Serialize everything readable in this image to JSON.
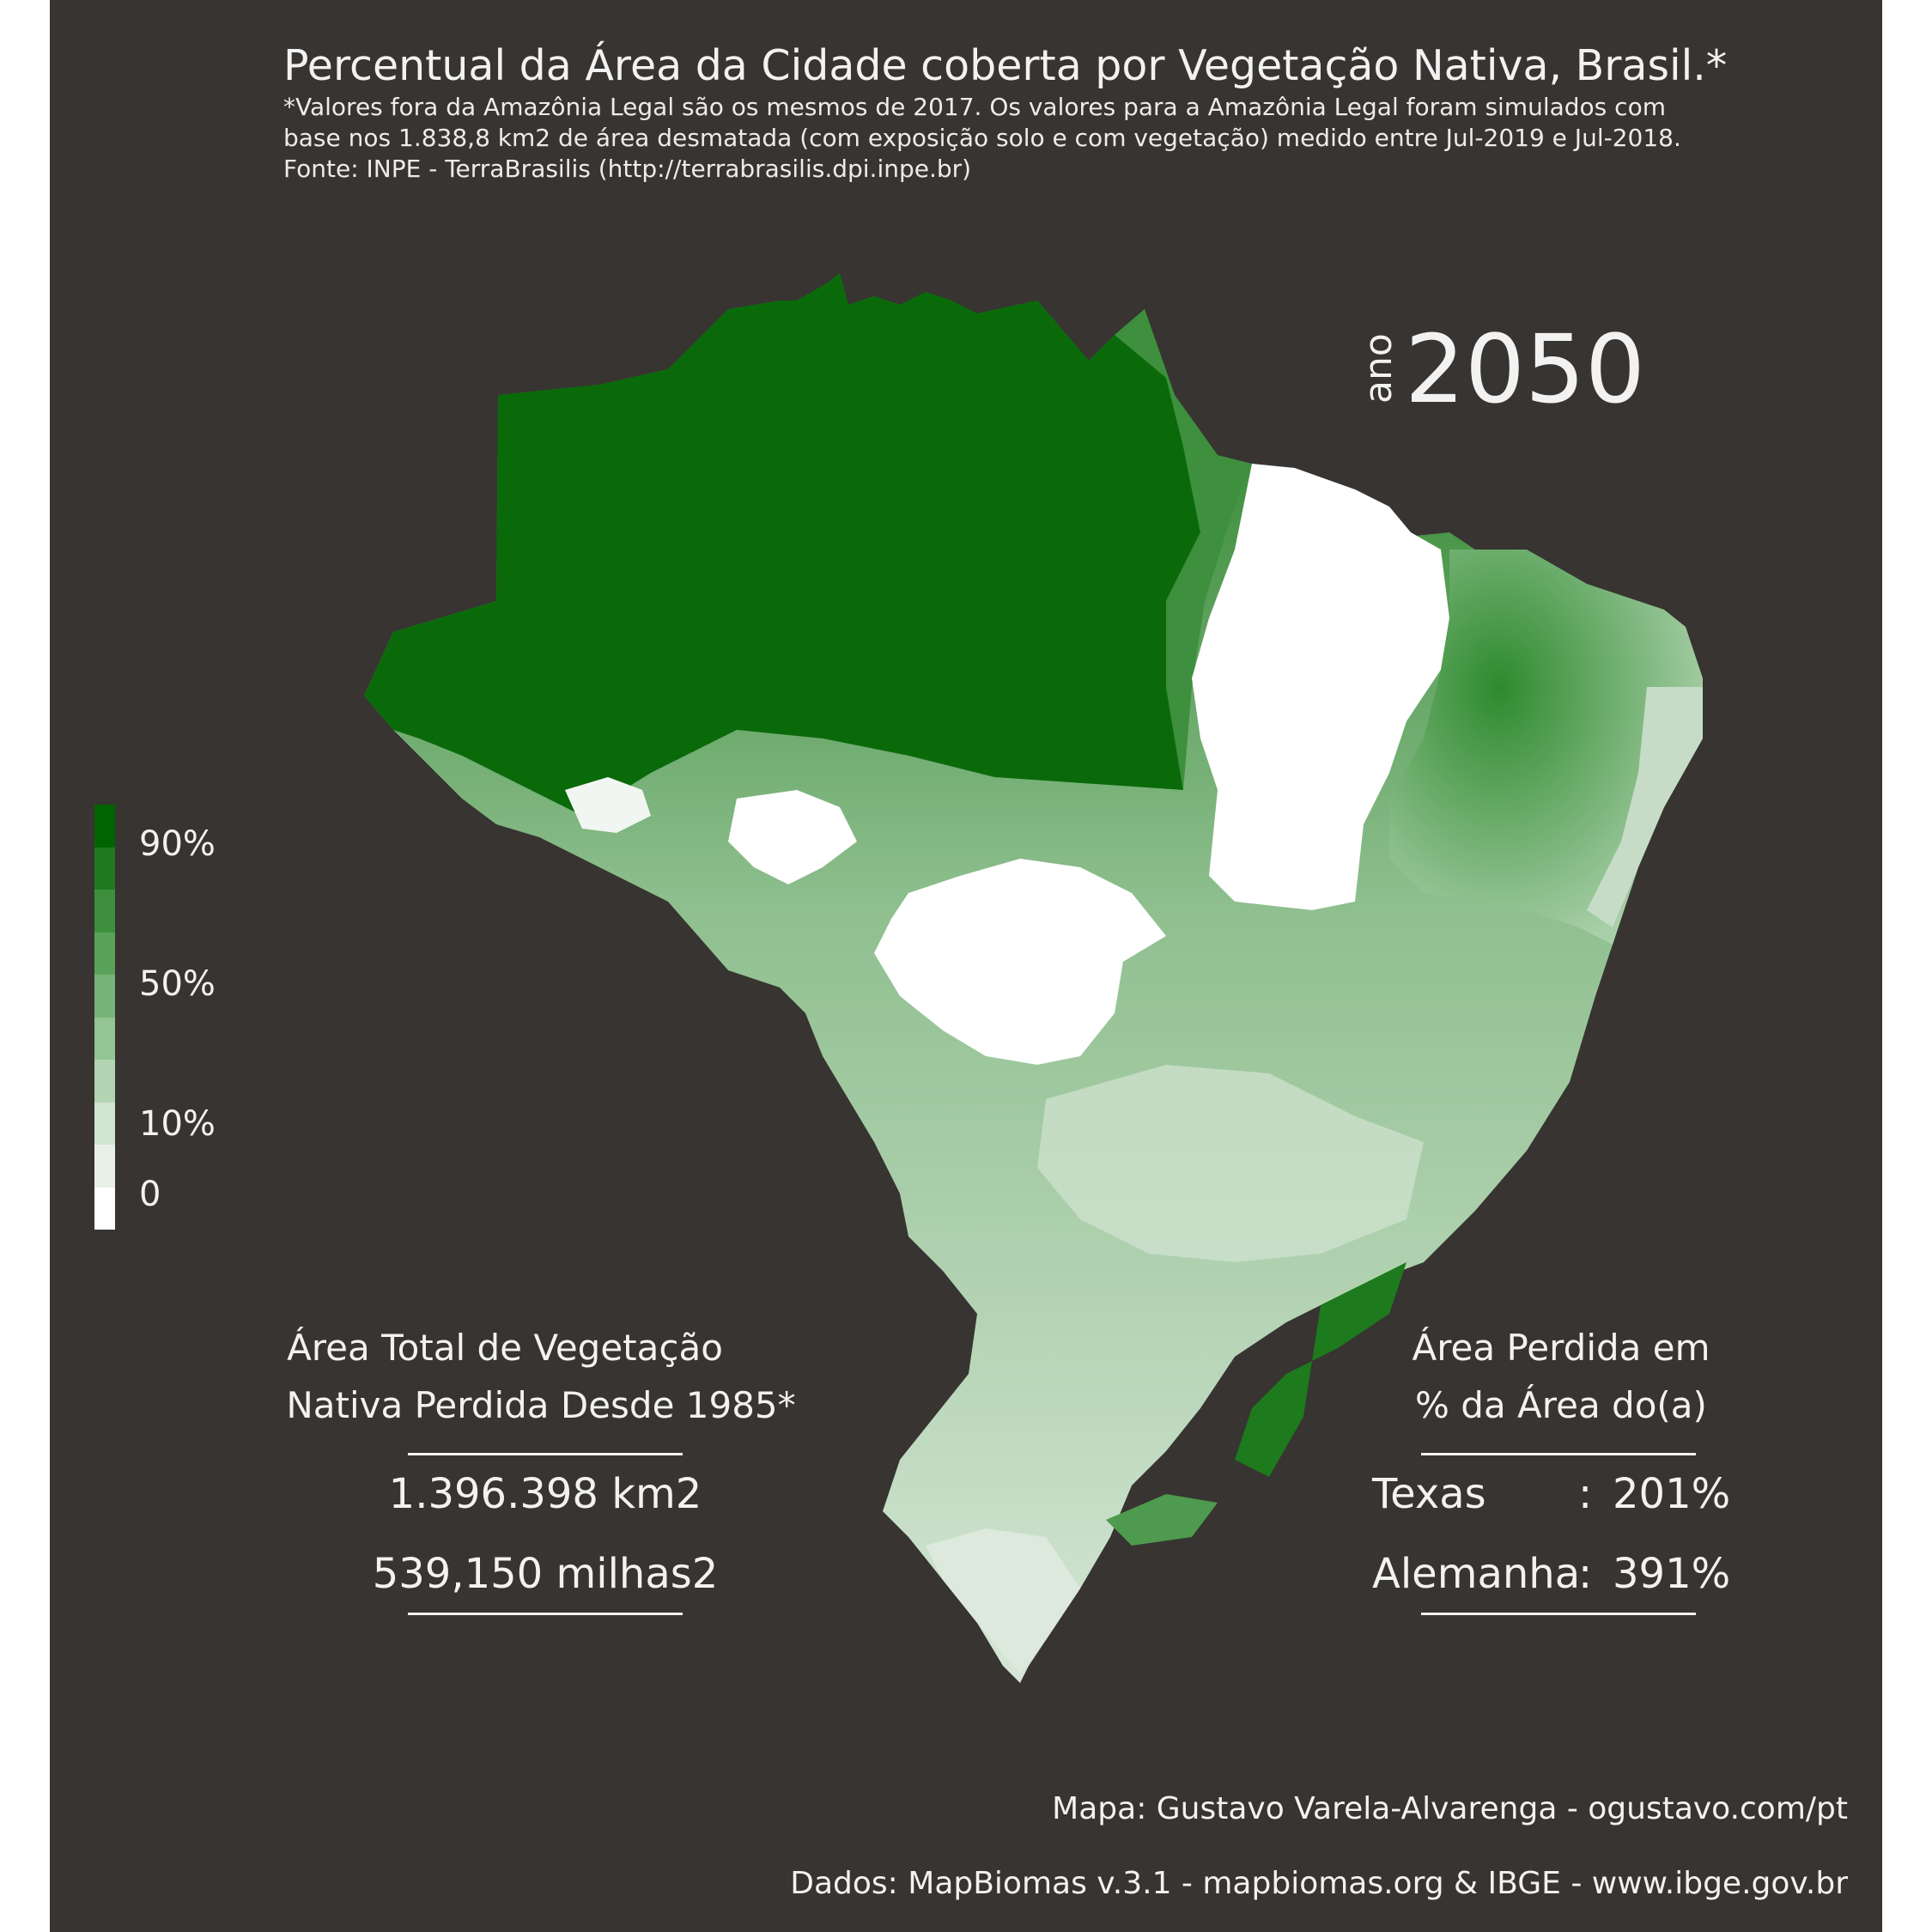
{
  "title": "Percentual da Área da Cidade coberta por Vegetação Nativa, Brasil.*",
  "subtitle_lines": [
    "*Valores fora da Amazônia Legal são os mesmos de 2017. Os valores para a Amazônia Legal foram simulados com",
    "base nos 1.838,8 km2 de área desmatada (com exposição solo e com vegetação) medido entre Jul-2019 e Jul-2018.",
    "Fonte: INPE - TerraBrasilis (http://terrabrasilis.dpi.inpe.br)"
  ],
  "year_label": "ano",
  "year": "2050",
  "legend": {
    "labels": [
      "90%",
      "50%",
      "10%",
      "0"
    ],
    "colors": [
      "#006400",
      "#1f7a1f",
      "#3d8f3d",
      "#5aa25a",
      "#76b376",
      "#93c493",
      "#b2d4b2",
      "#d0e4d0",
      "#e8f1e8",
      "#ffffff"
    ]
  },
  "left_stat": {
    "heading_lines": [
      "Área Total de Vegetação",
      "Nativa Perdida Desde 1985*"
    ],
    "value_km2": "1.396.398 km2",
    "value_miles": "539,150 milhas2"
  },
  "right_stat": {
    "heading_lines": [
      "Área Perdida em",
      "% da Área do(a)"
    ],
    "rows": [
      {
        "name": "Texas",
        "sep": ":",
        "value": "201%"
      },
      {
        "name": "Alemanha",
        "sep": ":",
        "value": "391%"
      }
    ]
  },
  "credits": [
    "Mapa: Gustavo Varela-Alvarenga - ogustavo.com/pt",
    "Dados: MapBiomas v.3.1 - mapbiomas.org & IBGE - www.ibge.gov.br"
  ]
}
